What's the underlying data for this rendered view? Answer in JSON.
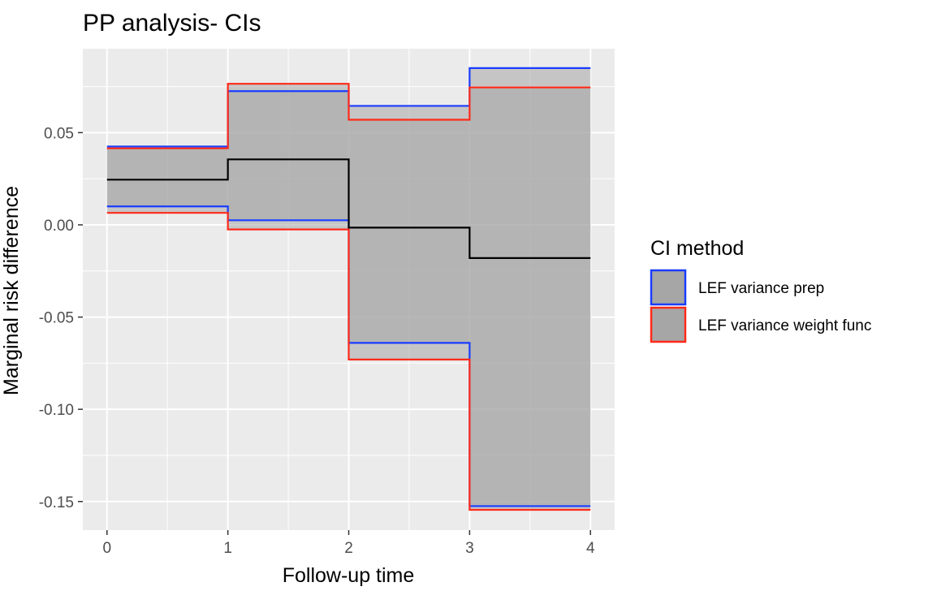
{
  "chart_data": {
    "type": "line",
    "title": "PP analysis- CIs",
    "xlabel": "Follow-up time",
    "ylabel": "Marginal risk difference",
    "xlim": [
      -0.2,
      4.2
    ],
    "ylim": [
      -0.1655,
      0.0955
    ],
    "x_ticks": [
      0,
      1,
      2,
      3,
      4
    ],
    "x_tick_labels": [
      "0",
      "1",
      "2",
      "3",
      "4"
    ],
    "y_ticks": [
      0.05,
      0.0,
      -0.05,
      -0.1,
      -0.15
    ],
    "y_tick_labels": [
      "0.05",
      "0.00",
      "-0.05",
      "-0.10",
      "-0.15"
    ],
    "grid": true,
    "step": true,
    "x": [
      0,
      1,
      2,
      3,
      4
    ],
    "estimate": {
      "color": "#000000",
      "values": [
        0.0245,
        0.0355,
        -0.0015,
        -0.018,
        -0.018
      ]
    },
    "series": [
      {
        "name": "LEF variance prep",
        "color": "#1a3cff",
        "lower": [
          0.01,
          0.0025,
          -0.064,
          -0.1525,
          -0.1525
        ],
        "upper": [
          0.0425,
          0.0725,
          0.0645,
          0.085,
          0.085
        ]
      },
      {
        "name": "LEF variance weight func",
        "color": "#ff2a1a",
        "lower": [
          0.0065,
          -0.0025,
          -0.073,
          -0.1545,
          -0.1545
        ],
        "upper": [
          0.0415,
          0.0765,
          0.057,
          0.0745,
          0.0745
        ]
      }
    ],
    "ribbon_fill": "#a6a6a6",
    "panel_bg": "#ebebeb",
    "legend": {
      "title": "CI method",
      "position": "right"
    }
  }
}
